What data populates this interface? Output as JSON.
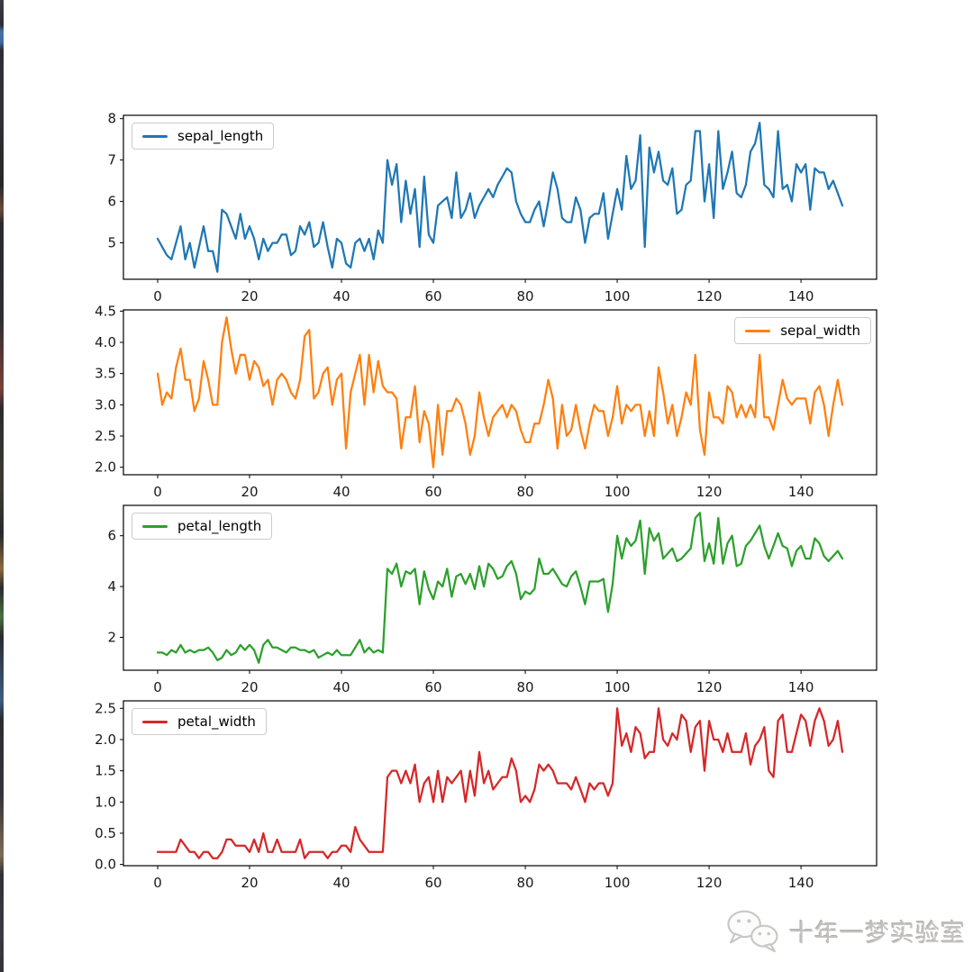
{
  "watermark": {
    "text": "十年一梦实验室",
    "icon": "wechat-icon"
  },
  "chart_data": [
    {
      "type": "line",
      "name": "sepal_length",
      "color": "#1f77b4",
      "x_mode": "sample-index",
      "xlim": [
        -7.45,
        156.45
      ],
      "ylim": [
        4.12,
        8.08
      ],
      "xticks": [
        0,
        20,
        40,
        60,
        80,
        100,
        120,
        140
      ],
      "yticks": [
        5,
        6,
        7,
        8
      ],
      "ytick_labels": [
        "5",
        "6",
        "7",
        "8"
      ],
      "legend_position": "upper-left",
      "grid": false,
      "values": [
        5.1,
        4.9,
        4.7,
        4.6,
        5.0,
        5.4,
        4.6,
        5.0,
        4.4,
        4.9,
        5.4,
        4.8,
        4.8,
        4.3,
        5.8,
        5.7,
        5.4,
        5.1,
        5.7,
        5.1,
        5.4,
        5.1,
        4.6,
        5.1,
        4.8,
        5.0,
        5.0,
        5.2,
        5.2,
        4.7,
        4.8,
        5.4,
        5.2,
        5.5,
        4.9,
        5.0,
        5.5,
        4.9,
        4.4,
        5.1,
        5.0,
        4.5,
        4.4,
        5.0,
        5.1,
        4.8,
        5.1,
        4.6,
        5.3,
        5.0,
        7.0,
        6.4,
        6.9,
        5.5,
        6.5,
        5.7,
        6.3,
        4.9,
        6.6,
        5.2,
        5.0,
        5.9,
        6.0,
        6.1,
        5.6,
        6.7,
        5.6,
        5.8,
        6.2,
        5.6,
        5.9,
        6.1,
        6.3,
        6.1,
        6.4,
        6.6,
        6.8,
        6.7,
        6.0,
        5.7,
        5.5,
        5.5,
        5.8,
        6.0,
        5.4,
        6.0,
        6.7,
        6.3,
        5.6,
        5.5,
        5.5,
        6.1,
        5.8,
        5.0,
        5.6,
        5.7,
        5.7,
        6.2,
        5.1,
        5.7,
        6.3,
        5.8,
        7.1,
        6.3,
        6.5,
        7.6,
        4.9,
        7.3,
        6.7,
        7.2,
        6.5,
        6.4,
        6.8,
        5.7,
        5.8,
        6.4,
        6.5,
        7.7,
        7.7,
        6.0,
        6.9,
        5.6,
        7.7,
        6.3,
        6.7,
        7.2,
        6.2,
        6.1,
        6.4,
        7.2,
        7.4,
        7.9,
        6.4,
        6.3,
        6.1,
        7.7,
        6.3,
        6.4,
        6.0,
        6.9,
        6.7,
        6.9,
        5.8,
        6.8,
        6.7,
        6.7,
        6.3,
        6.5,
        6.2,
        5.9
      ]
    },
    {
      "type": "line",
      "name": "sepal_width",
      "color": "#ff7f0e",
      "x_mode": "sample-index",
      "xlim": [
        -7.45,
        156.45
      ],
      "ylim": [
        1.88,
        4.52
      ],
      "xticks": [
        0,
        20,
        40,
        60,
        80,
        100,
        120,
        140
      ],
      "yticks": [
        2.0,
        2.5,
        3.0,
        3.5,
        4.0,
        4.5
      ],
      "ytick_labels": [
        "2.0",
        "2.5",
        "3.0",
        "3.5",
        "4.0",
        "4.5"
      ],
      "legend_position": "upper-right",
      "grid": false,
      "values": [
        3.5,
        3.0,
        3.2,
        3.1,
        3.6,
        3.9,
        3.4,
        3.4,
        2.9,
        3.1,
        3.7,
        3.4,
        3.0,
        3.0,
        4.0,
        4.4,
        3.9,
        3.5,
        3.8,
        3.8,
        3.4,
        3.7,
        3.6,
        3.3,
        3.4,
        3.0,
        3.4,
        3.5,
        3.4,
        3.2,
        3.1,
        3.4,
        4.1,
        4.2,
        3.1,
        3.2,
        3.5,
        3.6,
        3.0,
        3.4,
        3.5,
        2.3,
        3.2,
        3.5,
        3.8,
        3.0,
        3.8,
        3.2,
        3.7,
        3.3,
        3.2,
        3.2,
        3.1,
        2.3,
        2.8,
        2.8,
        3.3,
        2.4,
        2.9,
        2.7,
        2.0,
        3.0,
        2.2,
        2.9,
        2.9,
        3.1,
        3.0,
        2.7,
        2.2,
        2.5,
        3.2,
        2.8,
        2.5,
        2.8,
        2.9,
        3.0,
        2.8,
        3.0,
        2.9,
        2.6,
        2.4,
        2.4,
        2.7,
        2.7,
        3.0,
        3.4,
        3.1,
        2.3,
        3.0,
        2.5,
        2.6,
        3.0,
        2.6,
        2.3,
        2.7,
        3.0,
        2.9,
        2.9,
        2.5,
        2.8,
        3.3,
        2.7,
        3.0,
        2.9,
        3.0,
        3.0,
        2.5,
        2.9,
        2.5,
        3.6,
        3.2,
        2.7,
        3.0,
        2.5,
        2.8,
        3.2,
        3.0,
        3.8,
        2.6,
        2.2,
        3.2,
        2.8,
        2.8,
        2.7,
        3.3,
        3.2,
        2.8,
        3.0,
        2.8,
        3.0,
        2.8,
        3.8,
        2.8,
        2.8,
        2.6,
        3.0,
        3.4,
        3.1,
        3.0,
        3.1,
        3.1,
        3.1,
        2.7,
        3.2,
        3.3,
        3.0,
        2.5,
        3.0,
        3.4,
        3.0
      ]
    },
    {
      "type": "line",
      "name": "petal_length",
      "color": "#2ca02c",
      "x_mode": "sample-index",
      "xlim": [
        -7.45,
        156.45
      ],
      "ylim": [
        0.705,
        7.195
      ],
      "xticks": [
        0,
        20,
        40,
        60,
        80,
        100,
        120,
        140
      ],
      "yticks": [
        2,
        4,
        6
      ],
      "ytick_labels": [
        "2",
        "4",
        "6"
      ],
      "legend_position": "upper-left",
      "grid": false,
      "values": [
        1.4,
        1.4,
        1.3,
        1.5,
        1.4,
        1.7,
        1.4,
        1.5,
        1.4,
        1.5,
        1.5,
        1.6,
        1.4,
        1.1,
        1.2,
        1.5,
        1.3,
        1.4,
        1.7,
        1.5,
        1.7,
        1.5,
        1.0,
        1.7,
        1.9,
        1.6,
        1.6,
        1.5,
        1.4,
        1.6,
        1.6,
        1.5,
        1.5,
        1.4,
        1.5,
        1.2,
        1.3,
        1.4,
        1.3,
        1.5,
        1.3,
        1.3,
        1.3,
        1.6,
        1.9,
        1.4,
        1.6,
        1.4,
        1.5,
        1.4,
        4.7,
        4.5,
        4.9,
        4.0,
        4.6,
        4.5,
        4.7,
        3.3,
        4.6,
        3.9,
        3.5,
        4.2,
        4.0,
        4.7,
        3.6,
        4.4,
        4.5,
        4.1,
        4.5,
        3.9,
        4.8,
        4.0,
        4.9,
        4.7,
        4.3,
        4.4,
        4.8,
        5.0,
        4.5,
        3.5,
        3.8,
        3.7,
        3.9,
        5.1,
        4.5,
        4.5,
        4.7,
        4.4,
        4.1,
        4.0,
        4.4,
        4.6,
        4.0,
        3.3,
        4.2,
        4.2,
        4.2,
        4.3,
        3.0,
        4.1,
        6.0,
        5.1,
        5.9,
        5.6,
        5.8,
        6.6,
        4.5,
        6.3,
        5.8,
        6.1,
        5.1,
        5.3,
        5.5,
        5.0,
        5.1,
        5.3,
        5.5,
        6.7,
        6.9,
        5.0,
        5.7,
        4.9,
        6.7,
        4.9,
        5.7,
        6.0,
        4.8,
        4.9,
        5.6,
        5.8,
        6.1,
        6.4,
        5.6,
        5.1,
        5.6,
        6.1,
        5.6,
        5.5,
        4.8,
        5.4,
        5.6,
        5.1,
        5.1,
        5.9,
        5.7,
        5.2,
        5.0,
        5.2,
        5.4,
        5.1
      ]
    },
    {
      "type": "line",
      "name": "petal_width",
      "color": "#d62728",
      "x_mode": "sample-index",
      "xlim": [
        -7.45,
        156.45
      ],
      "ylim": [
        -0.02,
        2.62
      ],
      "xticks": [
        0,
        20,
        40,
        60,
        80,
        100,
        120,
        140
      ],
      "yticks": [
        0.0,
        0.5,
        1.0,
        1.5,
        2.0,
        2.5
      ],
      "ytick_labels": [
        "0.0",
        "0.5",
        "1.0",
        "1.5",
        "2.0",
        "2.5"
      ],
      "legend_position": "upper-left",
      "grid": false,
      "values": [
        0.2,
        0.2,
        0.2,
        0.2,
        0.2,
        0.4,
        0.3,
        0.2,
        0.2,
        0.1,
        0.2,
        0.2,
        0.1,
        0.1,
        0.2,
        0.4,
        0.4,
        0.3,
        0.3,
        0.3,
        0.2,
        0.4,
        0.2,
        0.5,
        0.2,
        0.2,
        0.4,
        0.2,
        0.2,
        0.2,
        0.2,
        0.4,
        0.1,
        0.2,
        0.2,
        0.2,
        0.2,
        0.1,
        0.2,
        0.2,
        0.3,
        0.3,
        0.2,
        0.6,
        0.4,
        0.3,
        0.2,
        0.2,
        0.2,
        0.2,
        1.4,
        1.5,
        1.5,
        1.3,
        1.5,
        1.3,
        1.6,
        1.0,
        1.3,
        1.4,
        1.0,
        1.5,
        1.0,
        1.4,
        1.3,
        1.4,
        1.5,
        1.0,
        1.5,
        1.1,
        1.8,
        1.3,
        1.5,
        1.2,
        1.3,
        1.4,
        1.4,
        1.7,
        1.5,
        1.0,
        1.1,
        1.0,
        1.2,
        1.6,
        1.5,
        1.6,
        1.5,
        1.3,
        1.3,
        1.3,
        1.2,
        1.4,
        1.2,
        1.0,
        1.3,
        1.2,
        1.3,
        1.3,
        1.1,
        1.3,
        2.5,
        1.9,
        2.1,
        1.8,
        2.2,
        2.1,
        1.7,
        1.8,
        1.8,
        2.5,
        2.0,
        1.9,
        2.1,
        2.0,
        2.4,
        2.3,
        1.8,
        2.2,
        2.3,
        1.5,
        2.3,
        2.0,
        2.0,
        1.8,
        2.1,
        1.8,
        1.8,
        1.8,
        2.1,
        1.6,
        1.9,
        2.0,
        2.2,
        1.5,
        1.4,
        2.3,
        2.4,
        1.8,
        1.8,
        2.1,
        2.4,
        2.3,
        1.9,
        2.3,
        2.5,
        2.3,
        1.9,
        2.0,
        2.3,
        1.8
      ]
    }
  ]
}
